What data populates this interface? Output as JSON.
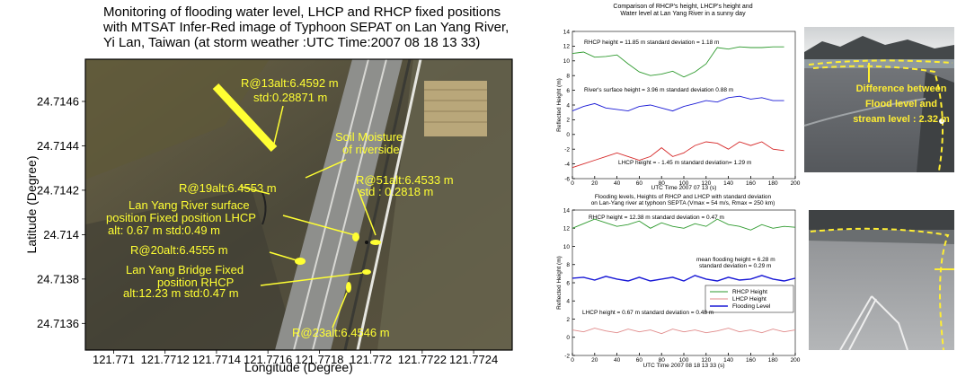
{
  "chart_data": [
    {
      "type": "image",
      "title": [
        "Monitoring of flooding water level, LHCP and RHCP fixed positions",
        "with MTSAT Infer-Red image of Typhoon SEPAT on Lan Yang River,",
        "Yi Lan, Taiwan (at storm weather :UTC Time:2007 08 18 13 33)"
      ],
      "xlabel": "Longitude (Degree)",
      "ylabel": "Latitude (Degree)",
      "xlim": [
        121.77089,
        121.77255
      ],
      "ylim": [
        24.71348,
        24.71479
      ],
      "xticks": [
        121.771,
        121.7712,
        121.7714,
        121.7716,
        121.7718,
        121.772,
        121.7722,
        121.7724
      ],
      "yticks": [
        24.7136,
        24.7138,
        24.714,
        24.7142,
        24.7144,
        24.7146
      ],
      "annotation_color": "#ffff33",
      "annotations": [
        [
          "R@13alt:6.4592 m",
          "std:0.28871 m"
        ],
        [
          "Soil Moisture",
          "of riverside"
        ],
        [
          "R@19alt:6.4553 m"
        ],
        [
          "R@51alt:6.4533 m",
          "std : 0.2818 m"
        ],
        [
          "Lan Yang River surface",
          "position Fixed position LHCP",
          "alt: 0.67 m std:0.49 m"
        ],
        [
          "R@20alt:6.4555 m"
        ],
        [
          "Lan Yang Bridge Fixed",
          "position RHCP",
          "alt:12.23 m std:0.47 m"
        ],
        [
          "R@23alt:6.4546 m"
        ]
      ]
    },
    {
      "type": "line",
      "title": [
        "Comparison of RHCP's height, LHCP's height and",
        "Water level at Lan Yang River in a sunny day"
      ],
      "xlabel": "UTC Time 2007 07 13  (s)",
      "ylabel": "Reflected Height (m)",
      "xlim": [
        0,
        200
      ],
      "ylim": [
        -6,
        14
      ],
      "xticks": [
        0,
        20,
        40,
        60,
        80,
        100,
        120,
        140,
        160,
        180,
        200
      ],
      "yticks": [
        -6,
        -4,
        -2,
        0,
        2,
        4,
        6,
        8,
        10,
        12,
        14
      ],
      "x": [
        0,
        10,
        20,
        30,
        40,
        50,
        60,
        70,
        80,
        90,
        100,
        110,
        120,
        130,
        140,
        150,
        160,
        170,
        180,
        190
      ],
      "series": [
        {
          "color": "#2e9a2e",
          "values": [
            11,
            11.2,
            10.5,
            10.6,
            10.8,
            9.6,
            8.5,
            8,
            8.2,
            8.6,
            7.8,
            8.5,
            9.6,
            11.8,
            11.6,
            11.9,
            11.8,
            11.8,
            11.9,
            11.9
          ]
        },
        {
          "color": "#1a1ad6",
          "values": [
            3.2,
            3.8,
            4.2,
            3.6,
            3.4,
            3.2,
            3.8,
            4,
            3.6,
            3.2,
            3.8,
            4.2,
            4.6,
            4.4,
            5,
            5.2,
            4.8,
            5,
            4.6,
            4.6
          ]
        },
        {
          "color": "#d62a2a",
          "values": [
            -4.5,
            -4,
            -3.5,
            -3,
            -2.5,
            -3,
            -3.5,
            -3,
            -1.8,
            -3,
            -2.5,
            -1.5,
            -1,
            -1.2,
            -2,
            -1,
            -1.5,
            -1,
            -2,
            -2.2
          ]
        }
      ],
      "annotations": [
        [
          "RHCP height = 11.85 m  standard deviation = 1.18 m"
        ],
        [
          "River's surface height = 3.96 m  standard deviation 0.88 m"
        ],
        [
          "LHCP height = - 1.45 m standard deviation= 1.29 m"
        ]
      ]
    },
    {
      "type": "line",
      "title": [
        "Flooding levels, Heights of RHCP and LHCP with standard deviation",
        "on  Lan-Yang river at typhoon SEPTA (Vmax = 54 m/s, Rmax = 250 km)"
      ],
      "xlabel": "UTC Time 2007 08 18 13 33 (s)",
      "ylabel": "Reflected Height (m)",
      "xlim": [
        0,
        200
      ],
      "ylim": [
        -2,
        14
      ],
      "xticks": [
        0,
        20,
        40,
        60,
        80,
        100,
        120,
        140,
        160,
        180,
        200
      ],
      "yticks": [
        -2,
        0,
        2,
        4,
        6,
        8,
        10,
        12,
        14
      ],
      "x": [
        0,
        10,
        20,
        30,
        40,
        50,
        60,
        70,
        80,
        90,
        100,
        110,
        120,
        130,
        140,
        150,
        160,
        170,
        180,
        190,
        200
      ],
      "series": [
        {
          "name": "RHCP Height",
          "color": "#2e9a2e",
          "values": [
            12,
            12.5,
            13,
            12.6,
            12.2,
            12.4,
            12.8,
            12,
            12.6,
            12.2,
            12,
            12.5,
            12.2,
            13,
            12.4,
            12.2,
            11.8,
            12.4,
            12,
            12.2,
            12.1
          ]
        },
        {
          "name": "LHCP Height",
          "color": "#e08a8a",
          "values": [
            0.8,
            0.6,
            1,
            0.7,
            0.5,
            0.9,
            0.6,
            0.8,
            0.4,
            0.9,
            0.6,
            0.8,
            0.5,
            0.7,
            1,
            0.6,
            0.8,
            0.5,
            0.9,
            0.6,
            0.8
          ]
        },
        {
          "name": "Flooding Level",
          "color": "#1a1ad6",
          "values": [
            6.5,
            6.6,
            6.3,
            6.7,
            6.4,
            6.2,
            6.6,
            6.2,
            6.4,
            6.6,
            6.2,
            6.8,
            6.4,
            6.2,
            6.6,
            6.3,
            6.4,
            6.8,
            6.4,
            6.2,
            6.5
          ]
        }
      ],
      "legend": "right",
      "annotations": [
        [
          "RHCP height = 12.38 m standard deviation = 0.47 m"
        ],
        [
          "mean flooding height = 6.28 m",
          "standard deviation = 0.29 m"
        ],
        [
          "LHCP height = 0.67 m standard deviation = 0.48 m"
        ]
      ]
    }
  ],
  "photo_caption": [
    "Difference between",
    "Flood level and",
    "stream level : 2.32 m"
  ]
}
